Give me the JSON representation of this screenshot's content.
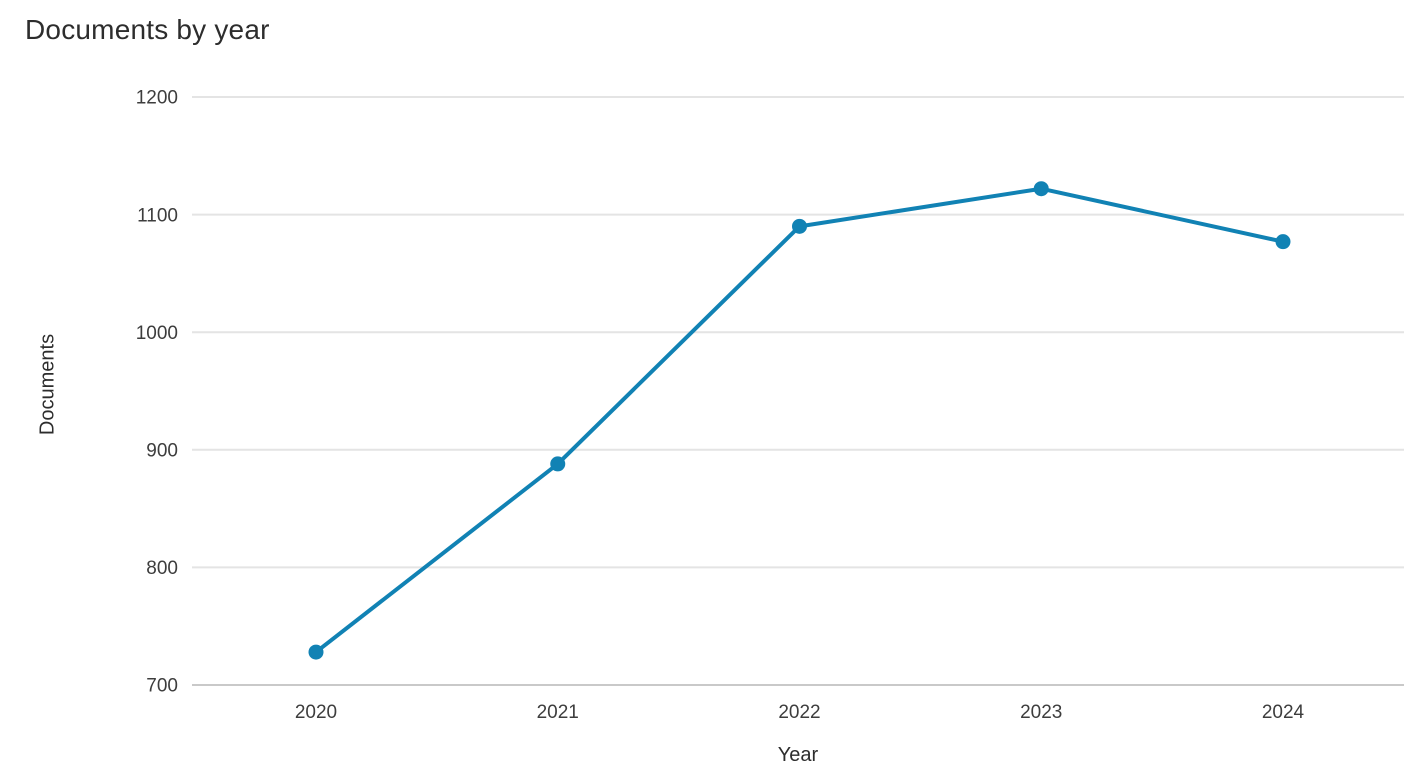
{
  "page": {
    "title": "Documents by year"
  },
  "chart_data": {
    "type": "line",
    "title": "Documents by year",
    "xlabel": "Year",
    "ylabel": "Documents",
    "categories": [
      "2020",
      "2021",
      "2022",
      "2023",
      "2024"
    ],
    "series": [
      {
        "name": "Documents",
        "values": [
          728,
          888,
          1090,
          1122,
          1077
        ]
      }
    ],
    "ylim": [
      700,
      1200
    ],
    "y_ticks": [
      1200,
      1100,
      1000,
      900,
      800,
      700
    ],
    "grid": "horizontal",
    "legend": "none",
    "colors": {
      "line": "#1182b4",
      "marker": "#1182b4",
      "gridline": "#e4e4e4",
      "axis_line": "#c9c9c9",
      "tick_text": "#3d3d3d",
      "title_text": "#2d2d2d",
      "background": "#ffffff"
    }
  }
}
